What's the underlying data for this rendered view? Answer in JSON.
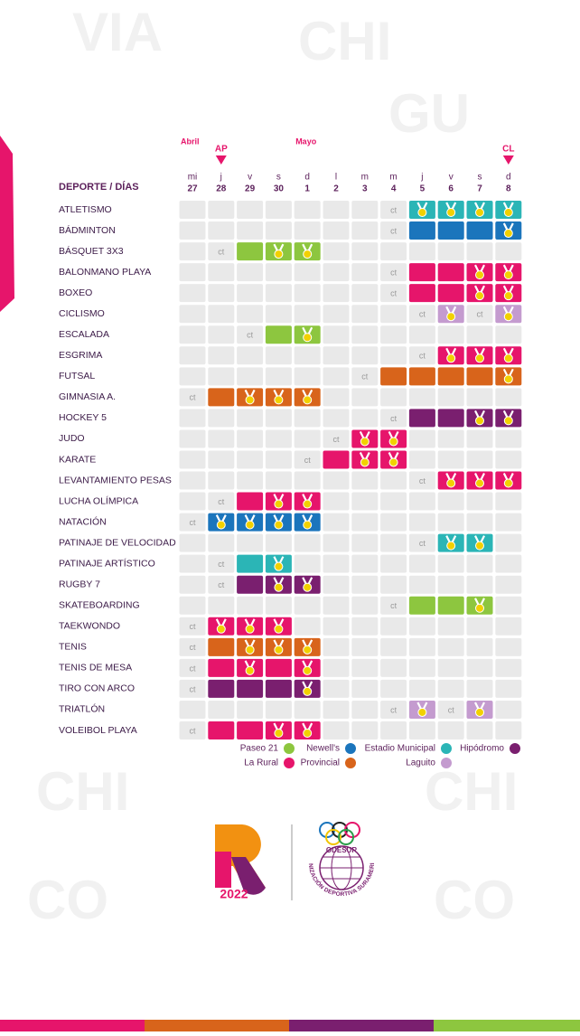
{
  "header": {
    "first_column": "DEPORTE / DÍAS",
    "months": [
      "Abril",
      "Mayo"
    ],
    "markers": [
      "AP",
      "CL"
    ],
    "days": [
      {
        "weekday": "mi",
        "day": 27
      },
      {
        "weekday": "j",
        "day": 28
      },
      {
        "weekday": "v",
        "day": 29
      },
      {
        "weekday": "s",
        "day": 30
      },
      {
        "weekday": "d",
        "day": 1
      },
      {
        "weekday": "l",
        "day": 2
      },
      {
        "weekday": "m",
        "day": 3
      },
      {
        "weekday": "m",
        "day": 4
      },
      {
        "weekday": "j",
        "day": 5
      },
      {
        "weekday": "v",
        "day": 6
      },
      {
        "weekday": "s",
        "day": 7
      },
      {
        "weekday": "d",
        "day": 8
      }
    ]
  },
  "venues": [
    {
      "name": "Paseo 21",
      "color": "#8dc63f"
    },
    {
      "name": "Newell's",
      "color": "#1b75bc"
    },
    {
      "name": "Estadio Municipal",
      "color": "#2bb5b6"
    },
    {
      "name": "Hipódromo",
      "color": "#7a1f6f"
    },
    {
      "name": "La Rural",
      "color": "#e6156b"
    },
    {
      "name": "Provincial",
      "color": "#d8641b"
    },
    {
      "name": "Laguito",
      "color": "#c49bcf"
    }
  ],
  "rows": [
    {
      "sport": "ATLETISMO",
      "cells": [
        null,
        null,
        null,
        null,
        null,
        null,
        null,
        "ct",
        {
          "venue": "Estadio Municipal",
          "medal": true
        },
        {
          "venue": "Estadio Municipal",
          "medal": true
        },
        {
          "venue": "Estadio Municipal",
          "medal": true
        },
        {
          "venue": "Estadio Municipal",
          "medal": true
        }
      ]
    },
    {
      "sport": "BÁDMINTON",
      "cells": [
        null,
        null,
        null,
        null,
        null,
        null,
        null,
        "ct",
        {
          "venue": "Newell's",
          "medal": false
        },
        {
          "venue": "Newell's",
          "medal": false
        },
        {
          "venue": "Newell's",
          "medal": false
        },
        {
          "venue": "Newell's",
          "medal": true
        }
      ]
    },
    {
      "sport": "BÁSQUET 3X3",
      "cells": [
        null,
        "ct",
        {
          "venue": "Paseo 21",
          "medal": false
        },
        {
          "venue": "Paseo 21",
          "medal": true
        },
        {
          "venue": "Paseo 21",
          "medal": true
        },
        null,
        null,
        null,
        null,
        null,
        null,
        null
      ]
    },
    {
      "sport": "BALONMANO PLAYA",
      "cells": [
        null,
        null,
        null,
        null,
        null,
        null,
        null,
        "ct",
        {
          "venue": "La Rural",
          "medal": false
        },
        {
          "venue": "La Rural",
          "medal": false
        },
        {
          "venue": "La Rural",
          "medal": true
        },
        {
          "venue": "La Rural",
          "medal": true
        }
      ]
    },
    {
      "sport": "BOXEO",
      "cells": [
        null,
        null,
        null,
        null,
        null,
        null,
        null,
        "ct",
        {
          "venue": "La Rural",
          "medal": false
        },
        {
          "venue": "La Rural",
          "medal": false
        },
        {
          "venue": "La Rural",
          "medal": true
        },
        {
          "venue": "La Rural",
          "medal": true
        }
      ]
    },
    {
      "sport": "CICLISMO",
      "cells": [
        null,
        null,
        null,
        null,
        null,
        null,
        null,
        null,
        "ct",
        {
          "venue": "Laguito",
          "medal": true
        },
        "ct",
        {
          "venue": "Laguito",
          "medal": true
        }
      ]
    },
    {
      "sport": "ESCALADA",
      "cells": [
        null,
        null,
        "ct",
        {
          "venue": "Paseo 21",
          "medal": false
        },
        {
          "venue": "Paseo 21",
          "medal": true
        },
        null,
        null,
        null,
        null,
        null,
        null,
        null
      ]
    },
    {
      "sport": "ESGRIMA",
      "cells": [
        null,
        null,
        null,
        null,
        null,
        null,
        null,
        null,
        "ct",
        {
          "venue": "La Rural",
          "medal": true
        },
        {
          "venue": "La Rural",
          "medal": true
        },
        {
          "venue": "La Rural",
          "medal": true
        }
      ]
    },
    {
      "sport": "FUTSAL",
      "cells": [
        null,
        null,
        null,
        null,
        null,
        null,
        "ct",
        {
          "venue": "Provincial",
          "medal": false
        },
        {
          "venue": "Provincial",
          "medal": false
        },
        {
          "venue": "Provincial",
          "medal": false
        },
        {
          "venue": "Provincial",
          "medal": false
        },
        {
          "venue": "Provincial",
          "medal": true
        }
      ]
    },
    {
      "sport": "GIMNASIA A.",
      "cells": [
        "ct",
        {
          "venue": "Provincial",
          "medal": false
        },
        {
          "venue": "Provincial",
          "medal": true
        },
        {
          "venue": "Provincial",
          "medal": true
        },
        {
          "venue": "Provincial",
          "medal": true
        },
        null,
        null,
        null,
        null,
        null,
        null,
        null
      ]
    },
    {
      "sport": "HOCKEY 5",
      "cells": [
        null,
        null,
        null,
        null,
        null,
        null,
        null,
        "ct",
        {
          "venue": "Hipódromo",
          "medal": false
        },
        {
          "venue": "Hipódromo",
          "medal": false
        },
        {
          "venue": "Hipódromo",
          "medal": true
        },
        {
          "venue": "Hipódromo",
          "medal": true
        }
      ]
    },
    {
      "sport": "JUDO",
      "cells": [
        null,
        null,
        null,
        null,
        null,
        "ct",
        {
          "venue": "La Rural",
          "medal": true
        },
        {
          "venue": "La Rural",
          "medal": true
        },
        null,
        null,
        null,
        null
      ]
    },
    {
      "sport": "KARATE",
      "cells": [
        null,
        null,
        null,
        null,
        "ct",
        {
          "venue": "La Rural",
          "medal": false
        },
        {
          "venue": "La Rural",
          "medal": true
        },
        {
          "venue": "La Rural",
          "medal": true
        },
        null,
        null,
        null,
        null
      ]
    },
    {
      "sport": "LEVANTAMIENTO PESAS",
      "cells": [
        null,
        null,
        null,
        null,
        null,
        null,
        null,
        null,
        "ct",
        {
          "venue": "La Rural",
          "medal": true
        },
        {
          "venue": "La Rural",
          "medal": true
        },
        {
          "venue": "La Rural",
          "medal": true
        }
      ]
    },
    {
      "sport": "LUCHA OLÍMPICA",
      "cells": [
        null,
        "ct",
        {
          "venue": "La Rural",
          "medal": false
        },
        {
          "venue": "La Rural",
          "medal": true
        },
        {
          "venue": "La Rural",
          "medal": true
        },
        null,
        null,
        null,
        null,
        null,
        null,
        null
      ]
    },
    {
      "sport": "NATACIÓN",
      "cells": [
        "ct",
        {
          "venue": "Newell's",
          "medal": true
        },
        {
          "venue": "Newell's",
          "medal": true
        },
        {
          "venue": "Newell's",
          "medal": true
        },
        {
          "venue": "Newell's",
          "medal": true
        },
        null,
        null,
        null,
        null,
        null,
        null,
        null
      ]
    },
    {
      "sport": "PATINAJE DE VELOCIDAD",
      "cells": [
        null,
        null,
        null,
        null,
        null,
        null,
        null,
        null,
        "ct",
        {
          "venue": "Estadio Municipal",
          "medal": true
        },
        {
          "venue": "Estadio Municipal",
          "medal": true
        },
        null
      ]
    },
    {
      "sport": "PATINAJE ARTÍSTICO",
      "cells": [
        null,
        "ct",
        {
          "venue": "Estadio Municipal",
          "medal": false
        },
        {
          "venue": "Estadio Municipal",
          "medal": true
        },
        null,
        null,
        null,
        null,
        null,
        null,
        null,
        null
      ]
    },
    {
      "sport": "RUGBY 7",
      "cells": [
        null,
        "ct",
        {
          "venue": "Hipódromo",
          "medal": false
        },
        {
          "venue": "Hipódromo",
          "medal": true
        },
        {
          "venue": "Hipódromo",
          "medal": true
        },
        null,
        null,
        null,
        null,
        null,
        null,
        null
      ]
    },
    {
      "sport": "SKATEBOARDING",
      "cells": [
        null,
        null,
        null,
        null,
        null,
        null,
        null,
        "ct",
        {
          "venue": "Paseo 21",
          "medal": false
        },
        {
          "venue": "Paseo 21",
          "medal": false
        },
        {
          "venue": "Paseo 21",
          "medal": true
        },
        null
      ]
    },
    {
      "sport": "TAEKWONDO",
      "cells": [
        "ct",
        {
          "venue": "La Rural",
          "medal": true
        },
        {
          "venue": "La Rural",
          "medal": true
        },
        {
          "venue": "La Rural",
          "medal": true
        },
        null,
        null,
        null,
        null,
        null,
        null,
        null,
        null
      ]
    },
    {
      "sport": "TENIS",
      "cells": [
        "ct",
        {
          "venue": "Provincial",
          "medal": false
        },
        {
          "venue": "Provincial",
          "medal": true
        },
        {
          "venue": "Provincial",
          "medal": true
        },
        {
          "venue": "Provincial",
          "medal": true
        },
        null,
        null,
        null,
        null,
        null,
        null,
        null
      ]
    },
    {
      "sport": "TENIS DE MESA",
      "cells": [
        "ct",
        {
          "venue": "La Rural",
          "medal": false
        },
        {
          "venue": "La Rural",
          "medal": true
        },
        {
          "venue": "La Rural",
          "medal": false
        },
        {
          "venue": "La Rural",
          "medal": true
        },
        null,
        null,
        null,
        null,
        null,
        null,
        null
      ]
    },
    {
      "sport": "TIRO CON ARCO",
      "cells": [
        "ct",
        {
          "venue": "Hipódromo",
          "medal": false
        },
        {
          "venue": "Hipódromo",
          "medal": false
        },
        {
          "venue": "Hipódromo",
          "medal": false
        },
        {
          "venue": "Hipódromo",
          "medal": true
        },
        null,
        null,
        null,
        null,
        null,
        null,
        null
      ]
    },
    {
      "sport": "TRIATLÓN",
      "cells": [
        null,
        null,
        null,
        null,
        null,
        null,
        null,
        "ct",
        {
          "venue": "Laguito",
          "medal": true
        },
        "ct",
        {
          "venue": "Laguito",
          "medal": true
        },
        null
      ]
    },
    {
      "sport": "VOLEIBOL PLAYA",
      "cells": [
        "ct",
        {
          "venue": "La Rural",
          "medal": false
        },
        {
          "venue": "La Rural",
          "medal": false
        },
        {
          "venue": "La Rural",
          "medal": true
        },
        {
          "venue": "La Rural",
          "medal": true
        },
        null,
        null,
        null,
        null,
        null,
        null,
        null
      ]
    }
  ],
  "logos": {
    "year": "2022",
    "org_short": "ODESUR",
    "org_full": "ORGANIZACIÓN DEPORTIVA SURAMERICANA"
  }
}
